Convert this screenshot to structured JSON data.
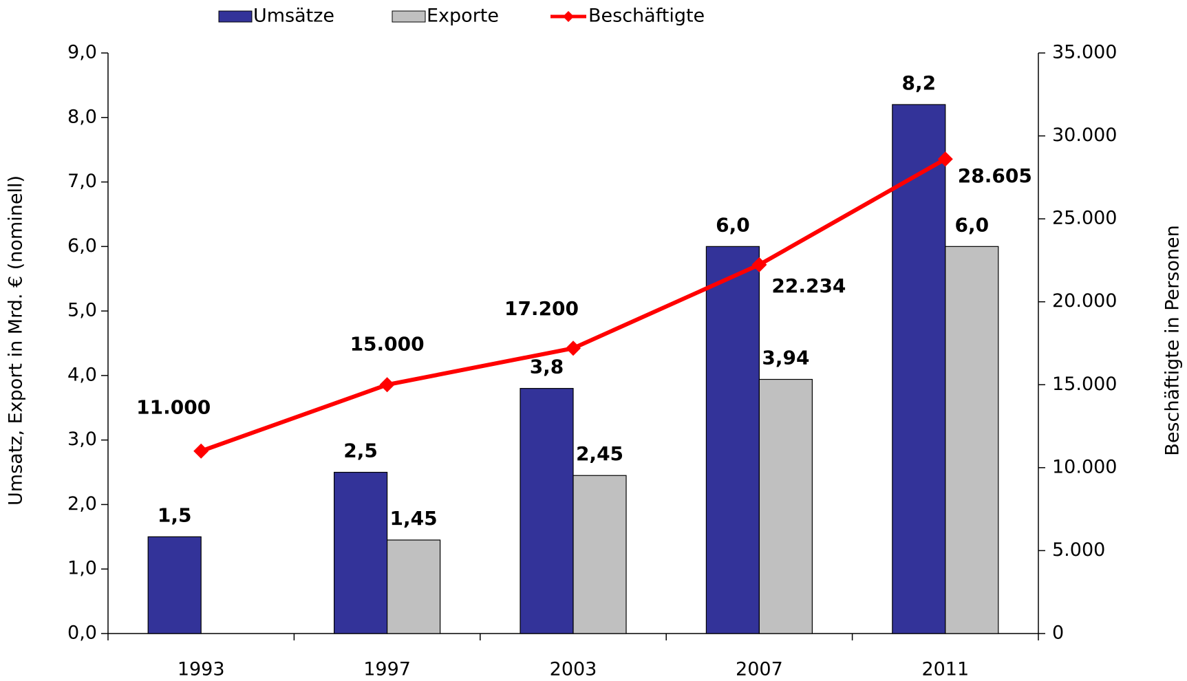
{
  "chart_data": {
    "type": "bar",
    "categories": [
      "1993",
      "1997",
      "2003",
      "2007",
      "2011"
    ],
    "series": [
      {
        "name": "Umsätze",
        "color": "#333399",
        "label_color": "#333399",
        "values": [
          1.5,
          2.5,
          3.8,
          6.0,
          8.2
        ],
        "value_labels": [
          "1,5",
          "2,5",
          "3,8",
          "6,0",
          "8,2"
        ]
      },
      {
        "name": "Exporte",
        "color": "#c0c0c0",
        "label_color": "#808080",
        "values": [
          null,
          1.45,
          2.45,
          3.94,
          6.0
        ],
        "value_labels": [
          null,
          "1,45",
          "2,45",
          "3,94",
          "6,0"
        ]
      },
      {
        "name": "Beschäftigte",
        "type": "line",
        "axis": "y2",
        "color": "#ff0000",
        "label_color": "#ff0000",
        "values": [
          11000,
          15000,
          17200,
          22234,
          28605
        ],
        "value_labels": [
          "11.000",
          "15.000",
          "17.200",
          "22.234",
          "28.605"
        ]
      }
    ],
    "y_label": "Umsatz, Export in Mrd. € (nominell)",
    "y2_label": "Beschäftigte in Personen",
    "ylim": [
      0,
      9
    ],
    "yticks": [
      {
        "value": 0,
        "label": "0,0"
      },
      {
        "value": 1,
        "label": "1,0"
      },
      {
        "value": 2,
        "label": "2,0"
      },
      {
        "value": 3,
        "label": "3,0"
      },
      {
        "value": 4,
        "label": "4,0"
      },
      {
        "value": 5,
        "label": "5,0"
      },
      {
        "value": 6,
        "label": "6,0"
      },
      {
        "value": 7,
        "label": "7,0"
      },
      {
        "value": 8,
        "label": "8,0"
      },
      {
        "value": 9,
        "label": "9,0"
      }
    ],
    "y2lim": [
      0,
      35000
    ],
    "y2ticks": [
      0,
      {
        "value": 5000,
        "label": "5.000"
      },
      {
        "value": 10000,
        "label": "10.000"
      },
      {
        "value": 15000,
        "label": "15.000"
      },
      {
        "value": 20000,
        "label": "20.000"
      },
      {
        "value": 25000,
        "label": "25.000"
      },
      {
        "value": 30000,
        "label": "30.000"
      },
      {
        "value": 35000,
        "label": "35.000"
      }
    ],
    "legend": "top",
    "grid": false
  }
}
